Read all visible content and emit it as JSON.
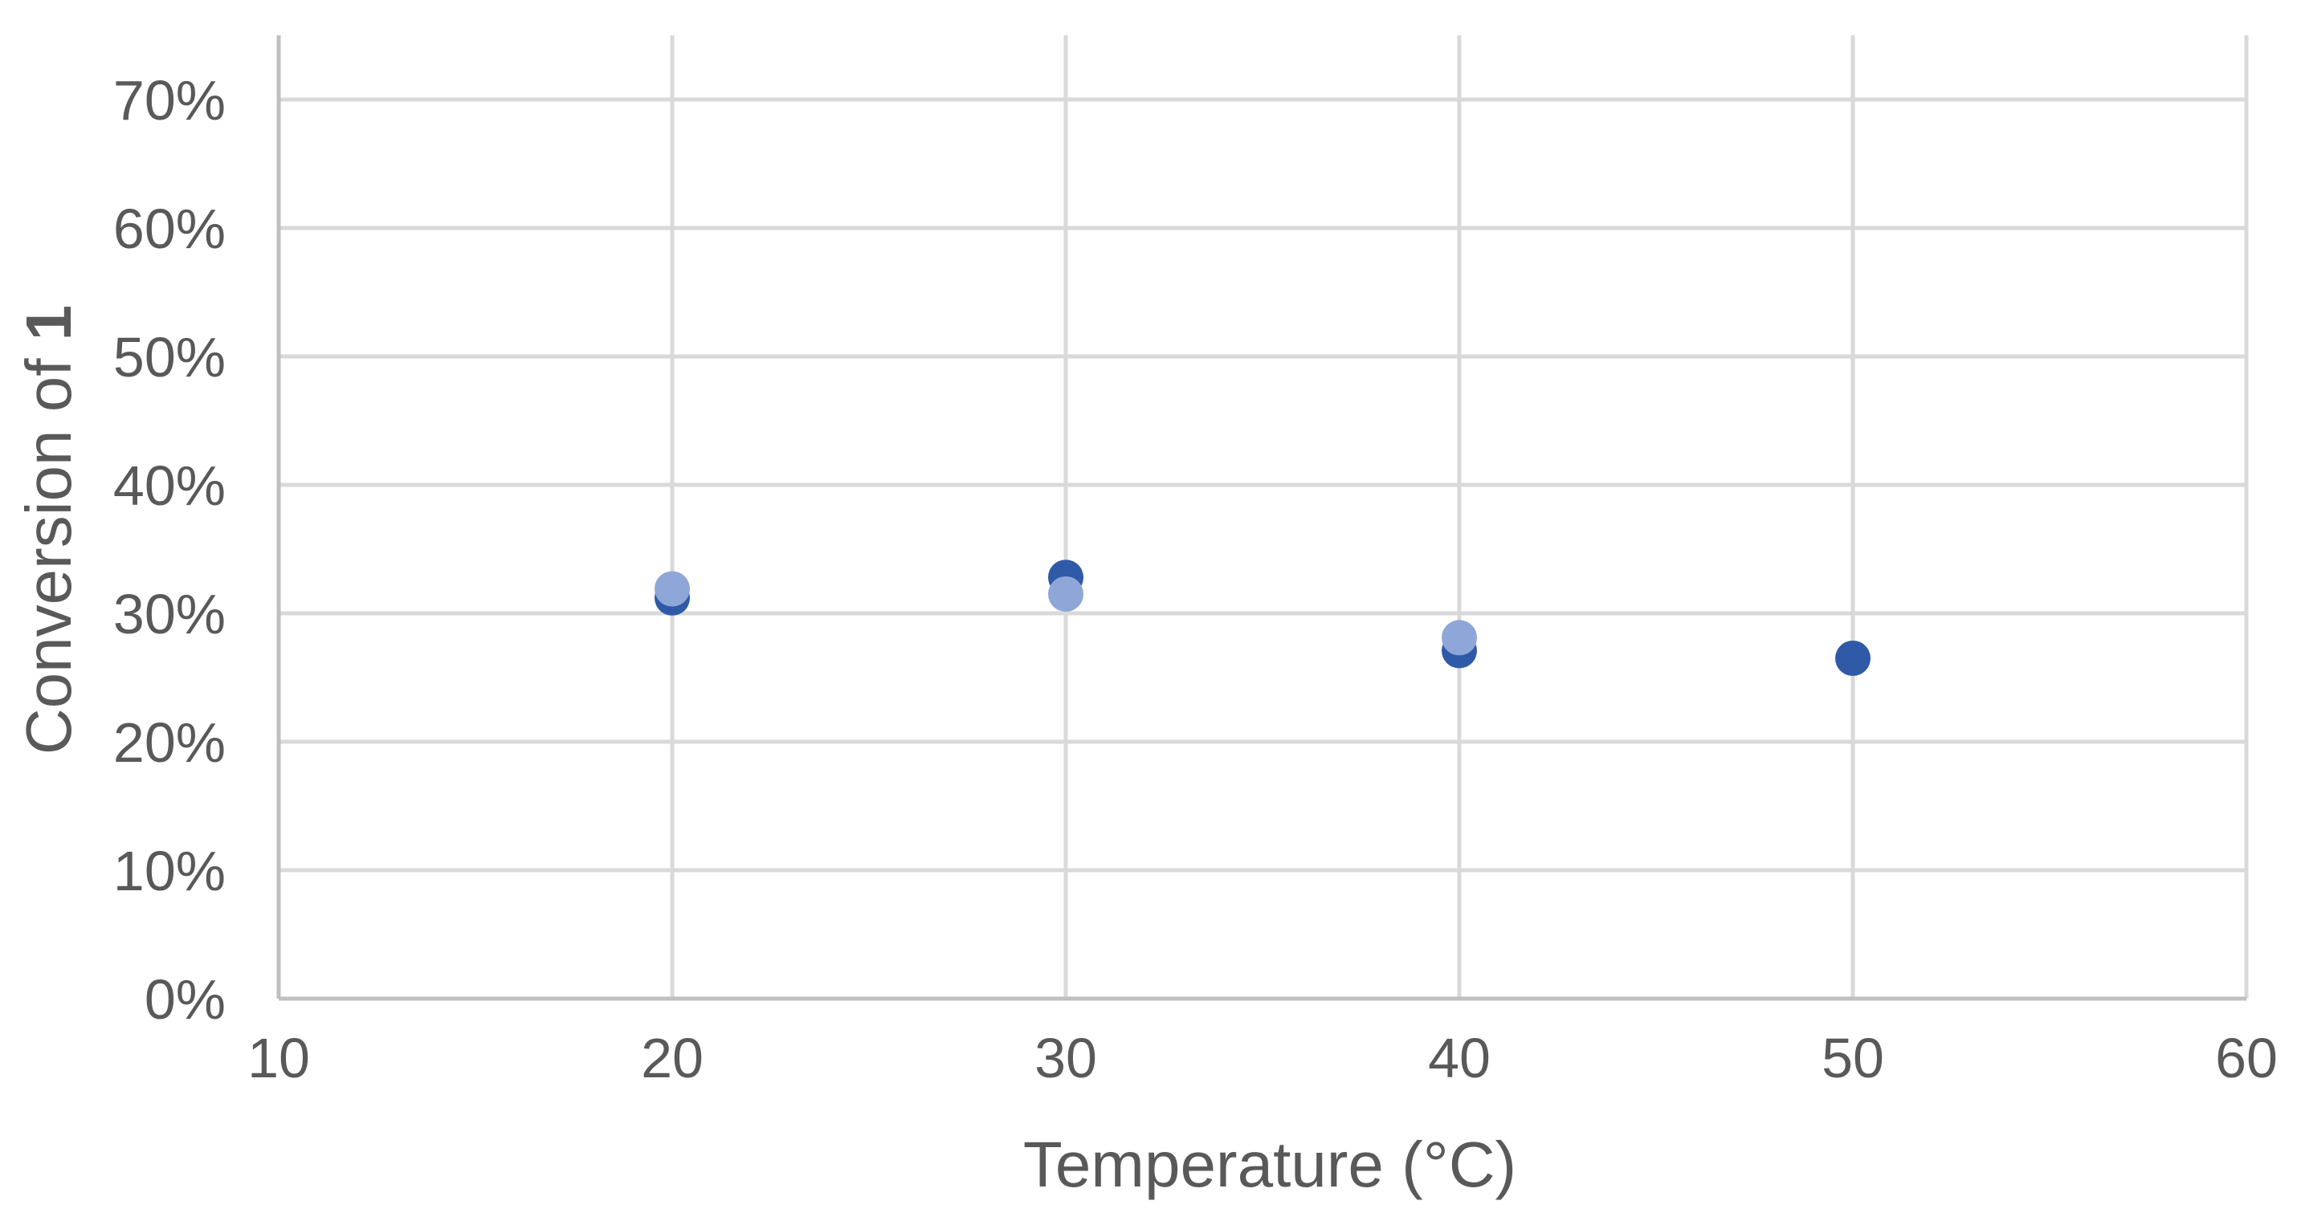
{
  "chart_data": {
    "type": "scatter",
    "title": "",
    "xlabel": "Temperature (°C)",
    "ylabel": {
      "prefix": "Conversion of ",
      "bold": "1"
    },
    "xlim": [
      10,
      60
    ],
    "ylim": [
      0,
      0.75
    ],
    "x_ticks": [
      10,
      20,
      30,
      40,
      50,
      60
    ],
    "x_tick_labels": [
      "10",
      "20",
      "30",
      "40",
      "50",
      "60"
    ],
    "y_ticks": [
      0,
      0.1,
      0.2,
      0.3,
      0.4,
      0.5,
      0.6,
      0.7
    ],
    "y_tick_labels": [
      "0%",
      "10%",
      "20%",
      "30%",
      "40%",
      "50%",
      "60%",
      "70%"
    ],
    "grid": true,
    "legend": "none",
    "series": [
      {
        "color": "#2f5aa8",
        "points": [
          {
            "x": 20,
            "y": 0.312
          },
          {
            "x": 30,
            "y": 0.328
          },
          {
            "x": 40,
            "y": 0.271
          },
          {
            "x": 50,
            "y": 0.265
          }
        ]
      },
      {
        "color": "#8fa6d8",
        "points": [
          {
            "x": 20,
            "y": 0.319
          },
          {
            "x": 30,
            "y": 0.315
          },
          {
            "x": 40,
            "y": 0.281
          }
        ]
      }
    ]
  }
}
